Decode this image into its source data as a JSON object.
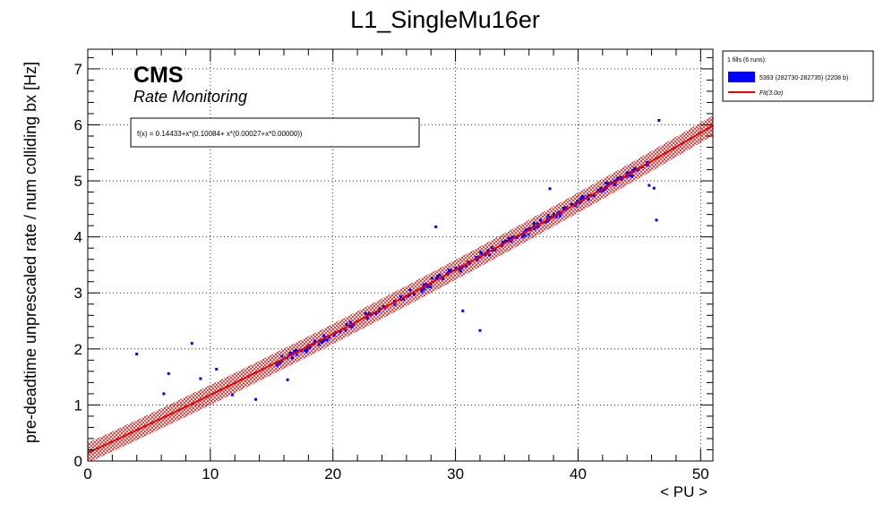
{
  "chart_data": {
    "type": "scatter",
    "title": "L1_SingleMu16er",
    "xlabel": "< PU >",
    "ylabel": "pre-deadtime unprescaled rate / num colliding bx [Hz]",
    "xlim": [
      0,
      51
    ],
    "ylim": [
      0,
      7.35
    ],
    "x_ticks": [
      0,
      10,
      20,
      30,
      40,
      50
    ],
    "y_ticks": [
      0,
      1,
      2,
      3,
      4,
      5,
      6,
      7
    ],
    "grid": true,
    "fit": {
      "label": "f(x) = 0.14433+x*(0.10084+ x*(0.00027+x*0.00000))",
      "c0": 0.14433,
      "c1": 0.10084,
      "c2": 0.00027,
      "c3": 0.0,
      "band_halfwidth": 0.18,
      "color": "#ee0000"
    },
    "cms_label": "CMS",
    "cms_sublabel": "Rate Monitoring",
    "legend": {
      "header": "1 fills (6 runs):",
      "entries": [
        {
          "label": "5393 (282730-282735) (2208 b)",
          "kind": "box",
          "color": "#0000ff"
        },
        {
          "label": "Fit(3.0σ)",
          "kind": "line",
          "color": "#ee0000"
        }
      ]
    },
    "points_color": "#0000ff",
    "outliers": [
      [
        4.0,
        1.91
      ],
      [
        6.2,
        1.2
      ],
      [
        6.6,
        1.56
      ],
      [
        8.5,
        2.1
      ],
      [
        9.2,
        1.47
      ],
      [
        10.5,
        1.64
      ],
      [
        11.8,
        1.18
      ],
      [
        13.7,
        1.1
      ],
      [
        16.3,
        1.45
      ],
      [
        28.4,
        4.18
      ],
      [
        30.6,
        2.68
      ],
      [
        32.0,
        2.33
      ],
      [
        37.7,
        4.86
      ],
      [
        45.8,
        4.92
      ],
      [
        46.2,
        4.87
      ],
      [
        46.4,
        4.3
      ],
      [
        46.6,
        6.08
      ]
    ]
  }
}
